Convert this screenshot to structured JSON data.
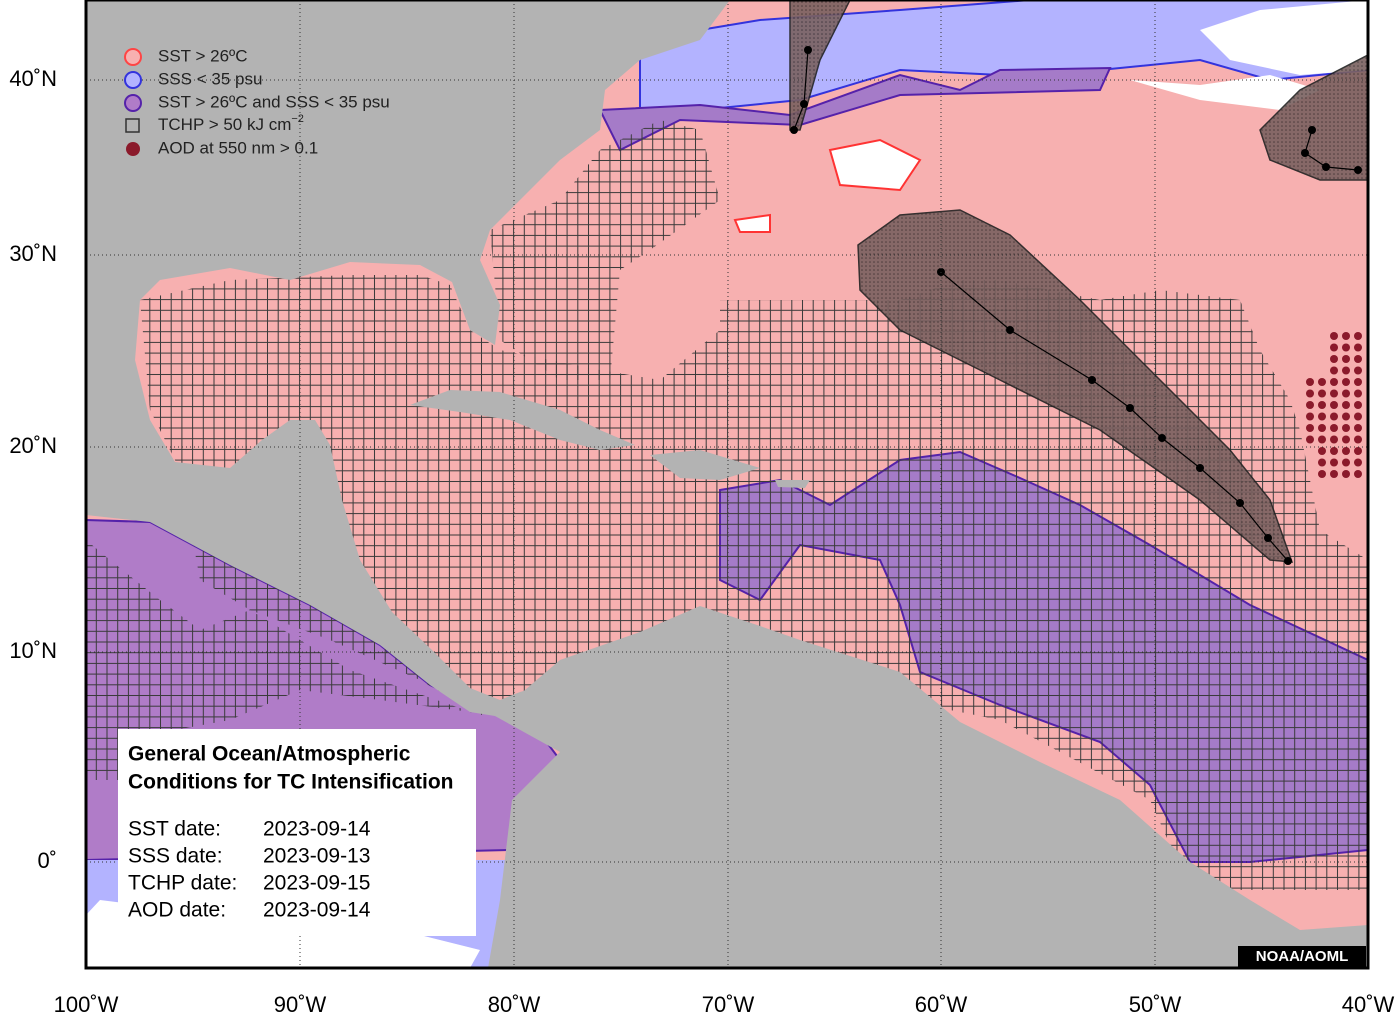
{
  "legend": [
    {
      "text": "SST > 26ºC"
    },
    {
      "text": "SSS < 35 psu"
    },
    {
      "text": "SST > 26ºC and SSS < 35 psu"
    },
    {
      "text": "TCHP > 50 kJ cm",
      "superscript": "−2"
    },
    {
      "text": "AOD at 550 nm > 0.1"
    }
  ],
  "info_box": {
    "title": [
      "General Ocean/Atmospheric",
      "Conditions for TC Intensification"
    ],
    "rows": [
      {
        "label": "SST date:",
        "date": "2023-09-14"
      },
      {
        "label": "SSS date:",
        "date": "2023-09-13"
      },
      {
        "label": "TCHP date:",
        "date": "2023-09-15"
      },
      {
        "label": "AOD date:",
        "date": "2023-09-14"
      }
    ]
  },
  "axes": {
    "latitude_labels": [
      "40˚N",
      "30˚N",
      "20˚N",
      "10˚N",
      "0˚"
    ],
    "longitude_labels": [
      "100˚W",
      "90˚W",
      "80˚W",
      "70˚W",
      "60˚W",
      "50˚W",
      "40˚W"
    ]
  },
  "credit": "NOAA/AOML"
}
